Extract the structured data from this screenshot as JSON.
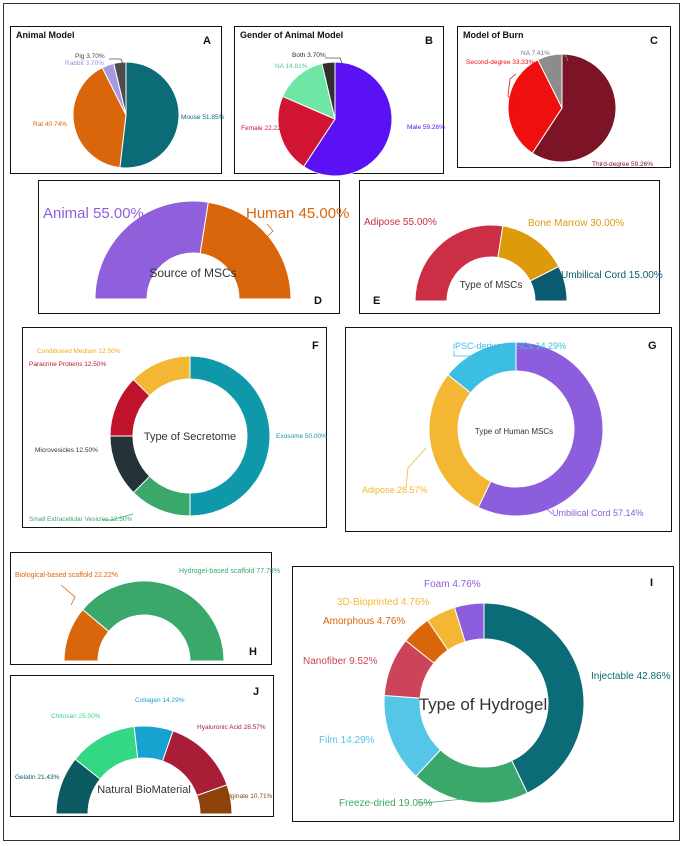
{
  "chart_data": [
    {
      "id": "A",
      "type": "pie",
      "title": "Animal Model",
      "letter": "A",
      "labels": [
        "Mouse 51.85%",
        "Rat 40.74%",
        "Rabbit 3.70%",
        "Pig 3.70%"
      ],
      "values": [
        51.85,
        40.74,
        3.7,
        3.7
      ],
      "colors": [
        "#0b6b76",
        "#d9660b",
        "#a79be0",
        "#4d4d4d"
      ]
    },
    {
      "id": "B",
      "type": "pie",
      "title": "Gender of Animal Model",
      "letter": "B",
      "labels": [
        "Male 59.26%",
        "Female 22.22%",
        "NA 14.81%",
        "Both 3.70%"
      ],
      "values": [
        59.26,
        22.22,
        14.81,
        3.7
      ],
      "colors": [
        "#5a12f5",
        "#d21433",
        "#6ee6a4",
        "#303030"
      ]
    },
    {
      "id": "C",
      "type": "pie",
      "title": "Model of Burn",
      "letter": "C",
      "labels": [
        "Third-degree 59.26%",
        "Second-degree 33.33%",
        "NA 7.41%"
      ],
      "values": [
        59.26,
        33.33,
        7.41
      ],
      "colors": [
        "#7c1426",
        "#ef0f0f",
        "#8c8c8c"
      ]
    },
    {
      "id": "D",
      "type": "semi-donut",
      "center_label": "Source of MSCs",
      "letter": "D",
      "labels": [
        "Animal 55.00%",
        "Human 45.00%"
      ],
      "values": [
        55.0,
        45.0
      ],
      "colors": [
        "#8f5fdc",
        "#d9660b"
      ]
    },
    {
      "id": "E",
      "type": "semi-donut",
      "center_label": "Type of MSCs",
      "letter": "E",
      "labels": [
        "Adipose 55.00%",
        "Bone Marrow 30.00%",
        "Umbilical Cord 15.00%"
      ],
      "values": [
        55.0,
        30.0,
        15.0
      ],
      "colors": [
        "#cc2e45",
        "#dd9a0b",
        "#0b5a70"
      ]
    },
    {
      "id": "F",
      "type": "donut",
      "center_label": "Type of Secretome",
      "letter": "F",
      "labels": [
        "Exosome 50.00%",
        "Small Extracellular Vesicles 12.50%",
        "Microvesicles 12.50%",
        "Paracrine Proteins 12.50%",
        "Conditioned Medium 12.50%"
      ],
      "values": [
        50.0,
        12.5,
        12.5,
        12.5,
        12.5
      ],
      "colors": [
        "#0e98a9",
        "#3aa86a",
        "#25323a",
        "#c0132b",
        "#f4b733"
      ]
    },
    {
      "id": "G",
      "type": "donut",
      "center_label": "Type of Human MSCs",
      "letter": "G",
      "labels": [
        "Umbilical Cord 57.14%",
        "Adipose 28.57%",
        "iPSC-derived MSCs 14.29%"
      ],
      "values": [
        57.14,
        28.57,
        14.29
      ],
      "colors": [
        "#8c5ddc",
        "#f4b733",
        "#3cbde3"
      ]
    },
    {
      "id": "H",
      "type": "semi-donut",
      "center_label": "",
      "letter": "H",
      "labels": [
        "Biological-based scaffold 22.22%",
        "Hydrogel-based scaffold 77.78%"
      ],
      "values": [
        22.22,
        77.78
      ],
      "colors": [
        "#d9660b",
        "#3aa86a"
      ]
    },
    {
      "id": "I",
      "type": "donut",
      "center_label": "Type of Hydrogel",
      "letter": "I",
      "labels": [
        "Injectable 42.86%",
        "Freeze-dried 19.05%",
        "Film 14.29%",
        "Nanofiber 9.52%",
        "Amorphous 4.76%",
        "3D-Bioprinted 4.76%",
        "Foam 4.76%"
      ],
      "values": [
        42.86,
        19.05,
        14.29,
        9.52,
        4.76,
        4.76,
        4.76
      ],
      "colors": [
        "#0b6b76",
        "#3aa86a",
        "#55c6e8",
        "#cc4459",
        "#d9660b",
        "#f4b733",
        "#8c5ddc"
      ]
    },
    {
      "id": "J",
      "type": "semi-donut",
      "center_label": "Natural BioMaterial",
      "letter": "J",
      "labels": [
        "Gelatin 21.43%",
        "Chitosan 25.00%",
        "Collagen 14.29%",
        "Hyaluronic Acid 28.57%",
        "Alginate 10.71%"
      ],
      "values": [
        21.43,
        25.0,
        14.29,
        28.57,
        10.71
      ],
      "colors": [
        "#0b5a62",
        "#34d784",
        "#18a2cf",
        "#a81e37",
        "#8c4208"
      ]
    }
  ]
}
